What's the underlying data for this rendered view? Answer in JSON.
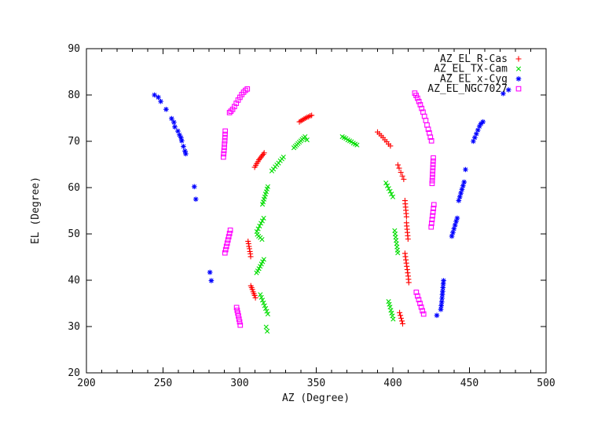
{
  "chart_data": {
    "type": "scatter",
    "title": "",
    "xlabel": "AZ (Degree)",
    "ylabel": "EL (Degree)",
    "xlim": [
      200,
      500
    ],
    "ylim": [
      20,
      90
    ],
    "xticks": [
      200,
      250,
      300,
      350,
      400,
      450,
      500
    ],
    "yticks": [
      20,
      30,
      40,
      50,
      60,
      70,
      80,
      90
    ],
    "x_minor_step": 10,
    "grid": false,
    "legend_position": "top-right-inside",
    "axis_color": "#000000",
    "series": [
      {
        "name": "AZ_EL_R-Cas",
        "marker": "plus",
        "color": "#ff0000",
        "points": [
          [
            339,
            74.2
          ],
          [
            340,
            74.4
          ],
          [
            341,
            74.6
          ],
          [
            342,
            74.8
          ],
          [
            343,
            75.0
          ],
          [
            344,
            75.2
          ],
          [
            345,
            75.3
          ],
          [
            346,
            75.5
          ],
          [
            347,
            75.6
          ],
          [
            309.8,
            64.4
          ],
          [
            310.5,
            64.8
          ],
          [
            311.2,
            65.2
          ],
          [
            311.9,
            65.6
          ],
          [
            312.6,
            66.0
          ],
          [
            313.3,
            66.3
          ],
          [
            314,
            66.6
          ],
          [
            314.7,
            66.9
          ],
          [
            315.4,
            67.2
          ],
          [
            316,
            67.5
          ],
          [
            305.5,
            48.4
          ],
          [
            305.8,
            47.9
          ],
          [
            306.1,
            47.3
          ],
          [
            306.4,
            46.8
          ],
          [
            306.7,
            46.2
          ],
          [
            307,
            45.7
          ],
          [
            307.2,
            45.1
          ],
          [
            307.3,
            38.8
          ],
          [
            307.8,
            38.4
          ],
          [
            308.3,
            38.0
          ],
          [
            308.8,
            37.5
          ],
          [
            309.3,
            37.1
          ],
          [
            309.8,
            36.7
          ],
          [
            310.3,
            36.2
          ],
          [
            390,
            72.0
          ],
          [
            391.2,
            71.6
          ],
          [
            392.4,
            71.2
          ],
          [
            393.6,
            70.8
          ],
          [
            394.8,
            70.3
          ],
          [
            396,
            69.9
          ],
          [
            397.2,
            69.4
          ],
          [
            398.4,
            69.0
          ],
          [
            403.3,
            64.9
          ],
          [
            404.1,
            64.2
          ],
          [
            405.2,
            63.3
          ],
          [
            406.2,
            62.5
          ],
          [
            407.1,
            61.8
          ],
          [
            407.9,
            57.2
          ],
          [
            408.1,
            56.5
          ],
          [
            408.3,
            55.8
          ],
          [
            408.5,
            55.1
          ],
          [
            408.7,
            54.4
          ],
          [
            408.9,
            53.7
          ],
          [
            408.9,
            52.4
          ],
          [
            409.1,
            51.7
          ],
          [
            409.3,
            51.0
          ],
          [
            409.5,
            50.3
          ],
          [
            409.7,
            49.6
          ],
          [
            409.9,
            48.9
          ],
          [
            407.9,
            45.8
          ],
          [
            408.2,
            45.1
          ],
          [
            408.5,
            44.4
          ],
          [
            408.8,
            43.7
          ],
          [
            409.1,
            43.0
          ],
          [
            409.4,
            42.3
          ],
          [
            409.7,
            41.6
          ],
          [
            410,
            40.9
          ],
          [
            410.2,
            40.2
          ],
          [
            410.4,
            39.5
          ],
          [
            404.4,
            33.0
          ],
          [
            404.9,
            32.4
          ],
          [
            405.4,
            31.8
          ],
          [
            405.9,
            31.2
          ],
          [
            406.4,
            30.6
          ]
        ]
      },
      {
        "name": "AZ_EL_TX-Cam",
        "marker": "cross",
        "color": "#00dd00",
        "points": [
          [
            335.4,
            68.6
          ],
          [
            336.3,
            68.9
          ],
          [
            337.2,
            69.2
          ],
          [
            338.1,
            69.5
          ],
          [
            339,
            69.8
          ],
          [
            339.9,
            70.1
          ],
          [
            340.8,
            70.4
          ],
          [
            341.7,
            70.7
          ],
          [
            342.7,
            71.0
          ],
          [
            344,
            70.3
          ],
          [
            367,
            71.0
          ],
          [
            368.2,
            70.8
          ],
          [
            369.4,
            70.6
          ],
          [
            370.6,
            70.3
          ],
          [
            371.8,
            70.1
          ],
          [
            373,
            69.9
          ],
          [
            374.2,
            69.6
          ],
          [
            375.4,
            69.4
          ],
          [
            376.6,
            69.2
          ],
          [
            321,
            63.6
          ],
          [
            322.1,
            64.0
          ],
          [
            323.2,
            64.5
          ],
          [
            324.3,
            64.9
          ],
          [
            325.4,
            65.3
          ],
          [
            326.5,
            65.8
          ],
          [
            327.6,
            66.2
          ],
          [
            328.6,
            66.6
          ],
          [
            318.4,
            60.2
          ],
          [
            317.9,
            59.7
          ],
          [
            317.4,
            59.1
          ],
          [
            316.9,
            58.6
          ],
          [
            316.4,
            58.0
          ],
          [
            315.9,
            57.5
          ],
          [
            315.4,
            56.9
          ],
          [
            314.9,
            56.4
          ],
          [
            311.2,
            50.5
          ],
          [
            312.1,
            51.1
          ],
          [
            313,
            51.7
          ],
          [
            313.9,
            52.3
          ],
          [
            314.8,
            52.8
          ],
          [
            315.7,
            53.4
          ],
          [
            311.5,
            49.9
          ],
          [
            312.4,
            49.5
          ],
          [
            313.5,
            49.2
          ],
          [
            314.6,
            48.8
          ],
          [
            315.8,
            44.5
          ],
          [
            315,
            44.0
          ],
          [
            314.2,
            43.5
          ],
          [
            313.4,
            43.0
          ],
          [
            312.6,
            42.5
          ],
          [
            311.8,
            42.0
          ],
          [
            311,
            41.6
          ],
          [
            313.5,
            36.9
          ],
          [
            314.2,
            36.3
          ],
          [
            314.9,
            35.7
          ],
          [
            315.6,
            35.1
          ],
          [
            316.3,
            34.5
          ],
          [
            317,
            33.9
          ],
          [
            317.7,
            33.3
          ],
          [
            318.4,
            32.7
          ],
          [
            317.3,
            29.9
          ],
          [
            318,
            29.0
          ],
          [
            395.5,
            61.0
          ],
          [
            396.4,
            60.4
          ],
          [
            397.3,
            59.8
          ],
          [
            398.2,
            59.2
          ],
          [
            399.1,
            58.6
          ],
          [
            400,
            58.0
          ],
          [
            401.2,
            50.7
          ],
          [
            401.5,
            50.0
          ],
          [
            401.8,
            49.3
          ],
          [
            402.1,
            48.6
          ],
          [
            402.4,
            47.9
          ],
          [
            402.7,
            47.2
          ],
          [
            403,
            46.5
          ],
          [
            403.2,
            45.9
          ],
          [
            397.2,
            35.4
          ],
          [
            397.7,
            34.8
          ],
          [
            398.2,
            34.2
          ],
          [
            398.7,
            33.5
          ],
          [
            399.2,
            32.9
          ],
          [
            399.7,
            32.3
          ],
          [
            400.2,
            31.6
          ]
        ]
      },
      {
        "name": "AZ_EL_x-Cyg",
        "marker": "asterisk",
        "color": "#0000ff",
        "points": [
          [
            244.4,
            80.0
          ],
          [
            246.9,
            79.5
          ],
          [
            248.5,
            78.6
          ],
          [
            252,
            76.9
          ],
          [
            255.6,
            74.9
          ],
          [
            257.1,
            74.1
          ],
          [
            257.7,
            73.1
          ],
          [
            259.7,
            72.2
          ],
          [
            260.7,
            71.4
          ],
          [
            261.7,
            70.8
          ],
          [
            262.2,
            70.1
          ],
          [
            263.3,
            68.9
          ],
          [
            264.3,
            67.9
          ],
          [
            264.8,
            67.3
          ],
          [
            270.4,
            60.2
          ],
          [
            271.4,
            57.5
          ],
          [
            280.6,
            41.7
          ],
          [
            281.5,
            39.9
          ],
          [
            428.7,
            32.4
          ],
          [
            431.3,
            33.7
          ],
          [
            431.6,
            34.5
          ],
          [
            431.9,
            35.3
          ],
          [
            432.1,
            36.1
          ],
          [
            432.3,
            36.9
          ],
          [
            432.5,
            37.6
          ],
          [
            432.7,
            38.4
          ],
          [
            432.9,
            39.2
          ],
          [
            433.1,
            39.9
          ],
          [
            438.5,
            49.5
          ],
          [
            439.2,
            50.3
          ],
          [
            439.9,
            51.1
          ],
          [
            440.6,
            51.9
          ],
          [
            441.3,
            52.7
          ],
          [
            442,
            53.4
          ],
          [
            443,
            57.2
          ],
          [
            443.7,
            58.0
          ],
          [
            444.4,
            58.8
          ],
          [
            445.1,
            59.6
          ],
          [
            445.8,
            60.4
          ],
          [
            446.5,
            61.2
          ],
          [
            447.4,
            63.9
          ],
          [
            452.5,
            70.0
          ],
          [
            453.5,
            70.8
          ],
          [
            454.5,
            71.6
          ],
          [
            455.5,
            72.4
          ],
          [
            456.5,
            73.2
          ],
          [
            457.5,
            73.8
          ],
          [
            458.8,
            74.2
          ],
          [
            472,
            80.3
          ],
          [
            475.5,
            81.1
          ]
        ]
      },
      {
        "name": "AZ_EL_NGC7027",
        "marker": "square",
        "color": "#ff00ff",
        "points": [
          [
            305,
            81.3
          ],
          [
            303.8,
            81.0
          ],
          [
            302.6,
            80.6
          ],
          [
            301.4,
            80.1
          ],
          [
            300.2,
            79.5
          ],
          [
            299,
            78.9
          ],
          [
            297.8,
            78.2
          ],
          [
            296.6,
            77.5
          ],
          [
            295.4,
            76.9
          ],
          [
            294.3,
            76.5
          ],
          [
            293.4,
            76.2
          ],
          [
            290.6,
            72.2
          ],
          [
            290.5,
            71.5
          ],
          [
            290.4,
            70.8
          ],
          [
            290.3,
            70.1
          ],
          [
            290.1,
            69.4
          ],
          [
            290,
            68.7
          ],
          [
            289.8,
            68.0
          ],
          [
            289.6,
            67.3
          ],
          [
            289.4,
            66.6
          ],
          [
            293.9,
            50.8
          ],
          [
            293.4,
            50.1
          ],
          [
            292.9,
            49.4
          ],
          [
            292.4,
            48.7
          ],
          [
            291.9,
            48.0
          ],
          [
            291.4,
            47.3
          ],
          [
            290.9,
            46.6
          ],
          [
            290.4,
            45.9
          ],
          [
            298,
            34.1
          ],
          [
            298.4,
            33.5
          ],
          [
            298.8,
            32.9
          ],
          [
            299.2,
            32.3
          ],
          [
            299.6,
            31.6
          ],
          [
            300,
            31.0
          ],
          [
            300.4,
            30.3
          ],
          [
            414.3,
            80.4
          ],
          [
            415.2,
            79.9
          ],
          [
            416.1,
            79.3
          ],
          [
            417,
            78.6
          ],
          [
            417.9,
            77.9
          ],
          [
            418.8,
            77.1
          ],
          [
            419.7,
            76.3
          ],
          [
            420.6,
            75.4
          ],
          [
            421.5,
            74.5
          ],
          [
            422.3,
            73.5
          ],
          [
            423.1,
            72.6
          ],
          [
            423.8,
            71.8
          ],
          [
            424.5,
            70.9
          ],
          [
            425.2,
            70.1
          ],
          [
            426.4,
            66.4
          ],
          [
            426.3,
            65.7
          ],
          [
            426.2,
            65.0
          ],
          [
            426.1,
            64.3
          ],
          [
            426,
            63.6
          ],
          [
            425.9,
            62.9
          ],
          [
            425.8,
            62.2
          ],
          [
            425.7,
            61.5
          ],
          [
            425.6,
            60.9
          ],
          [
            426.8,
            56.3
          ],
          [
            426.5,
            55.5
          ],
          [
            426.2,
            54.7
          ],
          [
            425.9,
            53.9
          ],
          [
            425.6,
            53.1
          ],
          [
            425.3,
            52.3
          ],
          [
            425,
            51.5
          ],
          [
            415.3,
            37.4
          ],
          [
            416.1,
            36.6
          ],
          [
            416.9,
            35.8
          ],
          [
            417.7,
            35.0
          ],
          [
            418.5,
            34.2
          ],
          [
            419.3,
            33.4
          ],
          [
            420.1,
            32.7
          ]
        ]
      }
    ]
  }
}
